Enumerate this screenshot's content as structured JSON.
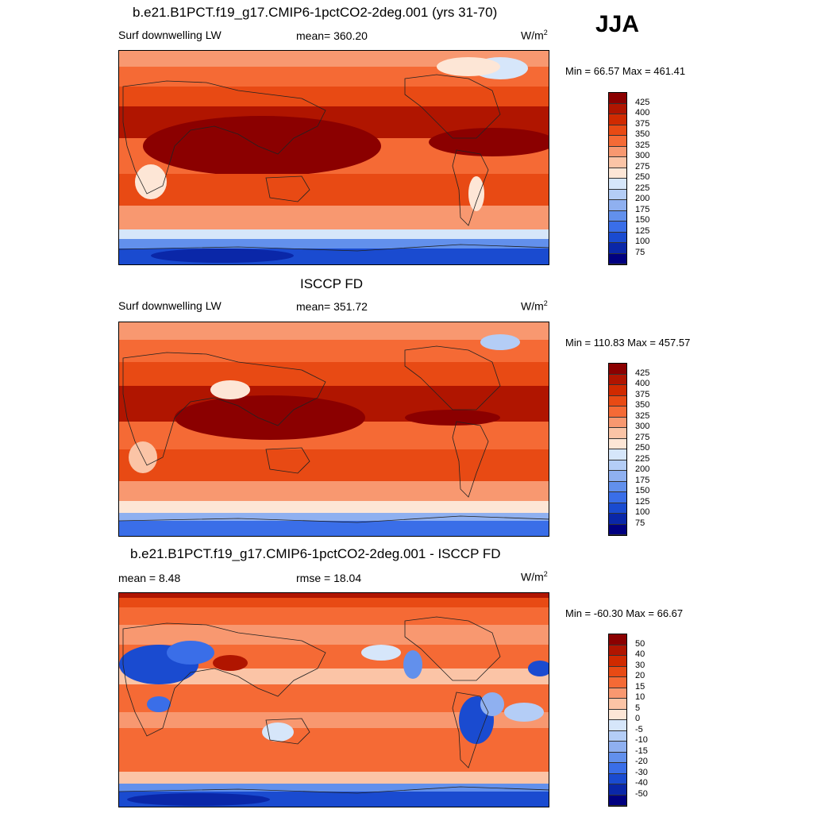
{
  "season": "JJA",
  "panels": [
    {
      "title": "b.e21.B1PCT.f19_g17.CMIP6-1pctCO2-2deg.001 (yrs 31-70)",
      "left_label": "Surf downwelling LW",
      "mid_label": "mean= 360.20",
      "units_base": "W/m",
      "units_exp": "2",
      "minmax": "Min =  66.57 Max = 461.41",
      "levels": [
        "425",
        "400",
        "375",
        "350",
        "325",
        "300",
        "275",
        "250",
        "225",
        "200",
        "175",
        "150",
        "125",
        "100",
        "75"
      ],
      "colors": [
        "#8b0000",
        "#b01500",
        "#d02a00",
        "#e84a14",
        "#f56a35",
        "#f89870",
        "#fbc4a6",
        "#fde6d6",
        "#d6e6fa",
        "#b4cdf6",
        "#8fb0f0",
        "#6290ec",
        "#3a6ee8",
        "#1a4bd0",
        "#0a27a8",
        "#000080"
      ]
    },
    {
      "title": "ISCCP FD",
      "left_label": "Surf downwelling LW",
      "mid_label": "mean= 351.72",
      "units_base": "W/m",
      "units_exp": "2",
      "minmax": "Min = 110.83 Max = 457.57",
      "levels": [
        "425",
        "400",
        "375",
        "350",
        "325",
        "300",
        "275",
        "250",
        "225",
        "200",
        "175",
        "150",
        "125",
        "100",
        "75"
      ],
      "colors": [
        "#8b0000",
        "#b01500",
        "#d02a00",
        "#e84a14",
        "#f56a35",
        "#f89870",
        "#fbc4a6",
        "#fde6d6",
        "#d6e6fa",
        "#b4cdf6",
        "#8fb0f0",
        "#6290ec",
        "#3a6ee8",
        "#1a4bd0",
        "#0a27a8",
        "#000080"
      ]
    },
    {
      "title": "b.e21.B1PCT.f19_g17.CMIP6-1pctCO2-2deg.001 - ISCCP FD",
      "left_label": "mean =   8.48",
      "mid_label": "rmse =  18.04",
      "units_base": "W/m",
      "units_exp": "2",
      "minmax": "Min = -60.30 Max =  66.67",
      "levels": [
        "50",
        "40",
        "30",
        "20",
        "15",
        "10",
        "5",
        "0",
        "-5",
        "-10",
        "-15",
        "-20",
        "-30",
        "-40",
        "-50"
      ],
      "colors": [
        "#8b0000",
        "#b01500",
        "#d02a00",
        "#e84a14",
        "#f56a35",
        "#f89870",
        "#fbc4a6",
        "#fde6d6",
        "#d6e6fa",
        "#b4cdf6",
        "#8fb0f0",
        "#6290ec",
        "#3a6ee8",
        "#1a4bd0",
        "#0a27a8",
        "#000080"
      ]
    }
  ]
}
